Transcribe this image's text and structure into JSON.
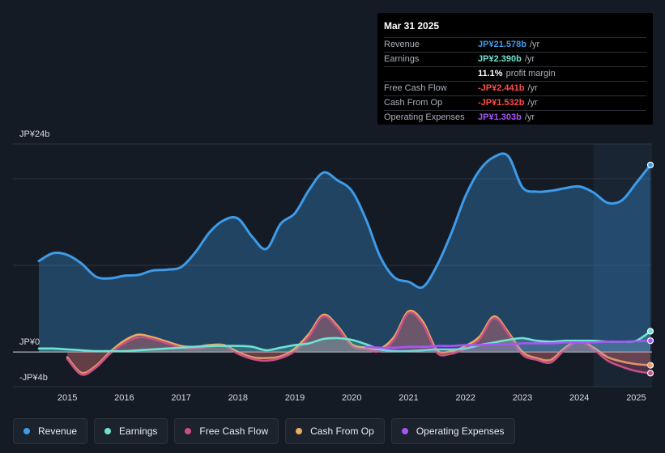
{
  "tooltip": {
    "date": "Mar 31 2025",
    "rows": [
      {
        "label": "Revenue",
        "value": "JP¥21.578b",
        "unit": "/yr",
        "color": "#3d9be9"
      },
      {
        "label": "Earnings",
        "value": "JP¥2.390b",
        "unit": "/yr",
        "color": "#6fe3d3"
      },
      {
        "label": "",
        "value": "11.1%",
        "unit": "profit margin",
        "color": "#ffffff"
      },
      {
        "label": "Free Cash Flow",
        "value": "-JP¥2.441b",
        "unit": "/yr",
        "color": "#ff4b4b"
      },
      {
        "label": "Cash From Op",
        "value": "-JP¥1.532b",
        "unit": "/yr",
        "color": "#ff4b4b"
      },
      {
        "label": "Operating Expenses",
        "value": "JP¥1.303b",
        "unit": "/yr",
        "color": "#a855f7"
      }
    ]
  },
  "legend": [
    {
      "label": "Revenue",
      "color": "#3d9be9"
    },
    {
      "label": "Earnings",
      "color": "#6fe3d3"
    },
    {
      "label": "Free Cash Flow",
      "color": "#c94f86"
    },
    {
      "label": "Cash From Op",
      "color": "#e8ae5e"
    },
    {
      "label": "Operating Expenses",
      "color": "#a855f7"
    }
  ],
  "chart_data": {
    "type": "area",
    "title": "",
    "unit": "JP¥ billions",
    "ylim": [
      -4,
      24
    ],
    "y_tick_labels": [
      "JP¥24b",
      "JP¥0",
      "-JP¥4b"
    ],
    "x_tick_labels": [
      "2015",
      "2016",
      "2017",
      "2018",
      "2019",
      "2020",
      "2021",
      "2022",
      "2023",
      "2024",
      "2025"
    ],
    "x_range": [
      2014.5,
      2025.25
    ],
    "forecast_shade_start": 2024.25,
    "series": [
      {
        "name": "Revenue",
        "color": "#3d9be9",
        "x": [
          2014.5,
          2014.75,
          2015.0,
          2015.25,
          2015.5,
          2015.75,
          2016.0,
          2016.25,
          2016.5,
          2016.75,
          2017.0,
          2017.25,
          2017.5,
          2017.75,
          2018.0,
          2018.25,
          2018.5,
          2018.75,
          2019.0,
          2019.25,
          2019.5,
          2019.75,
          2020.0,
          2020.25,
          2020.5,
          2020.75,
          2021.0,
          2021.25,
          2021.5,
          2021.75,
          2022.0,
          2022.25,
          2022.5,
          2022.75,
          2023.0,
          2023.25,
          2023.5,
          2023.75,
          2024.0,
          2024.25,
          2024.5,
          2024.75,
          2025.0,
          2025.25
        ],
        "values": [
          10.5,
          11.4,
          11.2,
          10.2,
          8.7,
          8.5,
          8.8,
          8.9,
          9.4,
          9.5,
          9.8,
          11.5,
          13.8,
          15.2,
          15.4,
          13.3,
          11.9,
          14.8,
          16.0,
          18.7,
          20.7,
          19.8,
          18.6,
          15.3,
          11.0,
          8.6,
          8.1,
          7.5,
          10.0,
          13.7,
          18.0,
          21.0,
          22.5,
          22.6,
          19.0,
          18.5,
          18.6,
          18.9,
          19.1,
          18.4,
          17.2,
          17.5,
          19.5,
          21.578
        ]
      },
      {
        "name": "Earnings",
        "color": "#6fe3d3",
        "x": [
          2014.5,
          2014.75,
          2015.0,
          2015.25,
          2015.5,
          2015.75,
          2016.0,
          2016.25,
          2016.5,
          2016.75,
          2017.0,
          2017.25,
          2017.5,
          2017.75,
          2018.0,
          2018.25,
          2018.5,
          2018.75,
          2019.0,
          2019.25,
          2019.5,
          2019.75,
          2020.0,
          2020.25,
          2020.5,
          2020.75,
          2021.0,
          2021.25,
          2021.5,
          2021.75,
          2022.0,
          2022.25,
          2022.5,
          2022.75,
          2023.0,
          2023.25,
          2023.5,
          2023.75,
          2024.0,
          2024.25,
          2024.5,
          2024.75,
          2025.0,
          2025.25
        ],
        "values": [
          0.4,
          0.4,
          0.3,
          0.2,
          0.1,
          0.1,
          0.1,
          0.2,
          0.3,
          0.4,
          0.5,
          0.6,
          0.7,
          0.7,
          0.7,
          0.6,
          0.2,
          0.5,
          0.8,
          1.0,
          1.5,
          1.6,
          1.4,
          0.9,
          0.3,
          0.1,
          0.1,
          0.2,
          0.3,
          0.3,
          0.4,
          0.8,
          1.1,
          1.4,
          1.6,
          1.3,
          1.2,
          1.3,
          1.3,
          1.3,
          1.2,
          1.2,
          1.3,
          2.39
        ]
      },
      {
        "name": "Free Cash Flow",
        "color": "#c94f86",
        "x": [
          2014.5,
          2014.75,
          2015.0,
          2015.25,
          2015.5,
          2015.75,
          2016.0,
          2016.25,
          2016.5,
          2016.75,
          2017.0,
          2017.25,
          2017.5,
          2017.75,
          2018.0,
          2018.25,
          2018.5,
          2018.75,
          2019.0,
          2019.25,
          2019.5,
          2019.75,
          2020.0,
          2020.25,
          2020.5,
          2020.75,
          2021.0,
          2021.25,
          2021.5,
          2021.75,
          2022.0,
          2022.25,
          2022.5,
          2022.75,
          2023.0,
          2023.25,
          2023.5,
          2023.75,
          2024.0,
          2024.25,
          2024.5,
          2024.75,
          2025.0,
          2025.25
        ],
        "values": [
          null,
          null,
          -0.8,
          -2.6,
          -1.8,
          -0.2,
          1.0,
          1.7,
          1.5,
          1.0,
          0.5,
          0.4,
          0.6,
          0.7,
          -0.2,
          -0.8,
          -1.0,
          -0.7,
          0.1,
          1.8,
          4.1,
          2.8,
          0.7,
          0.3,
          0.1,
          1.5,
          4.5,
          3.2,
          -0.1,
          -0.2,
          0.4,
          1.5,
          3.9,
          2.1,
          -0.3,
          -0.9,
          -1.2,
          0.3,
          1.2,
          0.3,
          -1.0,
          -1.7,
          -2.2,
          -2.441
        ]
      },
      {
        "name": "Cash From Op",
        "color": "#e8ae5e",
        "x": [
          2014.5,
          2014.75,
          2015.0,
          2015.25,
          2015.5,
          2015.75,
          2016.0,
          2016.25,
          2016.5,
          2016.75,
          2017.0,
          2017.25,
          2017.5,
          2017.75,
          2018.0,
          2018.25,
          2018.5,
          2018.75,
          2019.0,
          2019.25,
          2019.5,
          2019.75,
          2020.0,
          2020.25,
          2020.5,
          2020.75,
          2021.0,
          2021.25,
          2021.5,
          2021.75,
          2022.0,
          2022.25,
          2022.5,
          2022.75,
          2023.0,
          2023.25,
          2023.5,
          2023.75,
          2024.0,
          2024.25,
          2024.5,
          2024.75,
          2025.0,
          2025.25
        ],
        "values": [
          null,
          null,
          -0.6,
          -2.4,
          -1.6,
          0.0,
          1.3,
          2.0,
          1.7,
          1.2,
          0.7,
          0.6,
          0.8,
          0.8,
          0.0,
          -0.6,
          -0.7,
          -0.5,
          0.4,
          2.1,
          4.3,
          3.0,
          0.9,
          0.5,
          0.4,
          1.8,
          4.7,
          3.5,
          0.2,
          0.1,
          0.7,
          1.8,
          4.1,
          2.3,
          0.0,
          -0.7,
          -0.9,
          0.5,
          1.3,
          0.5,
          -0.6,
          -1.1,
          -1.4,
          -1.532
        ]
      },
      {
        "name": "Operating Expenses",
        "color": "#a855f7",
        "x": [
          2020.25,
          2020.5,
          2020.75,
          2021.0,
          2021.25,
          2021.5,
          2021.75,
          2022.0,
          2022.25,
          2022.5,
          2022.75,
          2023.0,
          2023.25,
          2023.5,
          2023.75,
          2024.0,
          2024.25,
          2024.5,
          2024.75,
          2025.0,
          2025.25
        ],
        "values": [
          0.6,
          0.5,
          0.5,
          0.6,
          0.6,
          0.7,
          0.7,
          0.8,
          0.8,
          0.9,
          0.9,
          1.0,
          1.0,
          1.0,
          1.1,
          1.1,
          1.1,
          1.2,
          1.2,
          1.25,
          1.303
        ]
      }
    ]
  }
}
